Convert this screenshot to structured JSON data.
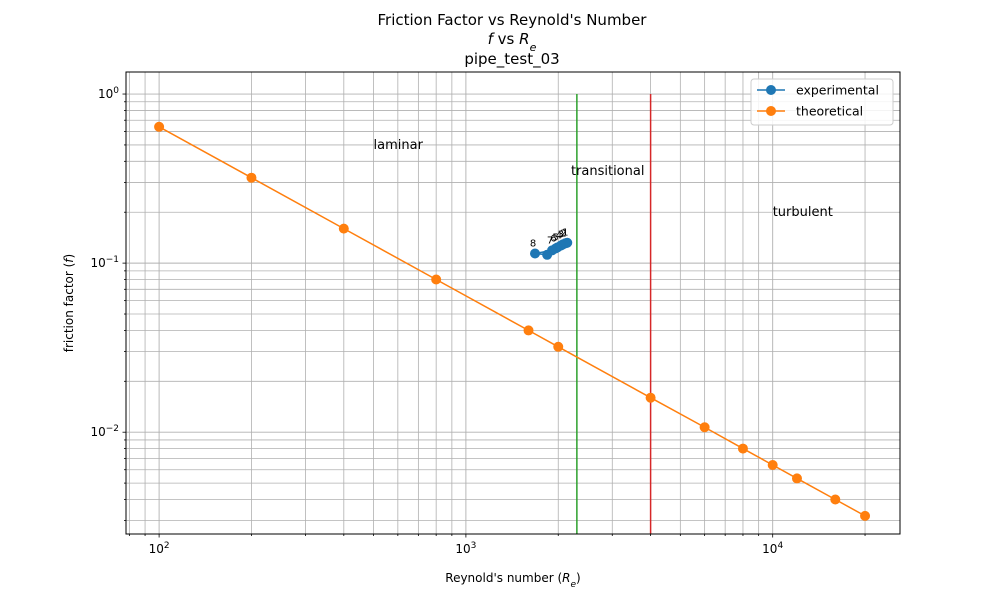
{
  "chart_data": {
    "type": "line",
    "title_lines": [
      "Friction Factor vs Reynold's Number",
      "f vs R_e",
      "pipe_test_03"
    ],
    "xlabel": "Reynold's number (R_e)",
    "ylabel": "friction factor (f)",
    "xscale": "log",
    "yscale": "log",
    "xlim": [
      78,
      26000
    ],
    "ylim": [
      0.0025,
      1.35
    ],
    "grid": "both-major-and-minor",
    "legend_placement": "top-right",
    "x_tick_labels": [
      {
        "value": 100,
        "base": "10",
        "exp": "2"
      },
      {
        "value": 1000,
        "base": "10",
        "exp": "3"
      },
      {
        "value": 10000,
        "base": "10",
        "exp": "4"
      }
    ],
    "y_tick_labels": [
      {
        "value": 0.01,
        "base": "10",
        "exp": "−2"
      },
      {
        "value": 0.1,
        "base": "10",
        "exp": "−1"
      },
      {
        "value": 1,
        "base": "10",
        "exp": "0"
      }
    ],
    "series": [
      {
        "name": "experimental",
        "color": "#1f77b4",
        "marker": "circle",
        "x": [
          2140,
          2110,
          2070,
          2040,
          1990,
          1960,
          1910,
          1680,
          1840
        ],
        "y": [
          0.132,
          0.131,
          0.129,
          0.127,
          0.124,
          0.122,
          0.119,
          0.114,
          0.112
        ],
        "point_labels": [
          "1",
          "2",
          "3",
          "4",
          "5",
          "6",
          "7",
          "8",
          ""
        ]
      },
      {
        "name": "theoretical",
        "color": "#ff7f0e",
        "marker": "circle",
        "x": [
          100,
          200,
          400,
          800,
          1600,
          2000,
          4000,
          6000,
          8000,
          10000,
          12000,
          16000,
          20000
        ],
        "y": [
          0.64,
          0.32,
          0.16,
          0.08,
          0.04,
          0.032,
          0.016,
          0.0107,
          0.008,
          0.0064,
          0.00533,
          0.004,
          0.0032
        ]
      }
    ],
    "vertical_lines": [
      {
        "x": 2300,
        "y_range": [
          0.0025,
          1.0
        ],
        "color": "#2ca02c"
      },
      {
        "x": 4000,
        "y_range": [
          0.0025,
          1.0
        ],
        "color": "#d62728"
      }
    ],
    "annotations": [
      {
        "text": "laminar",
        "x": 500,
        "y": 0.5
      },
      {
        "text": "transitional",
        "x": 2200,
        "y": 0.35
      },
      {
        "text": "turbulent",
        "x": 10000,
        "y": 0.2
      }
    ]
  }
}
